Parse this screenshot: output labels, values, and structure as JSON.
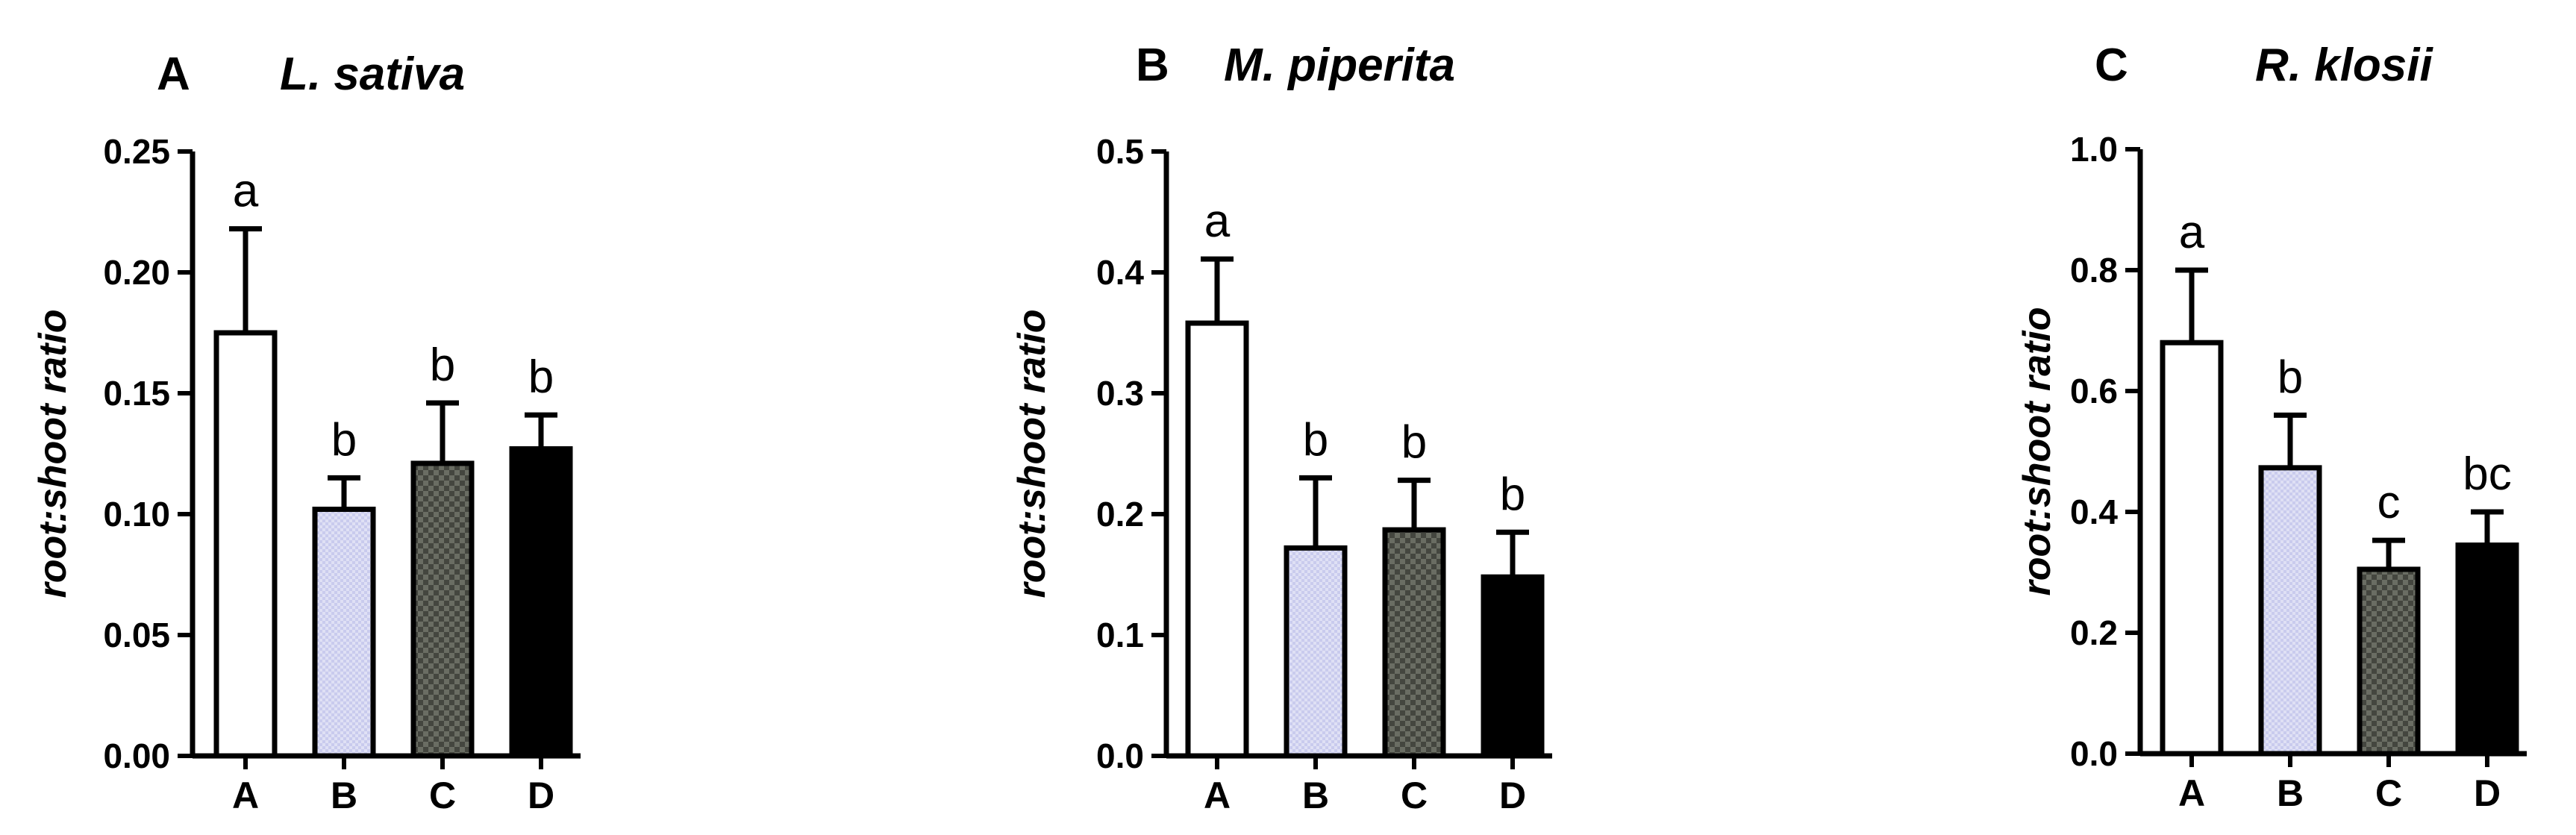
{
  "chart_data": [
    {
      "type": "bar",
      "panel": "A",
      "title": "L. sativa",
      "ylabel": "root:shoot ratio",
      "xlabel": "",
      "categories": [
        "A",
        "B",
        "C",
        "D"
      ],
      "values": [
        0.175,
        0.102,
        0.121,
        0.127
      ],
      "errors": [
        0.043,
        0.013,
        0.025,
        0.014
      ],
      "significance": [
        "a",
        "b",
        "b",
        "b"
      ],
      "ylim": [
        0,
        0.25
      ],
      "yticks": [
        "0.00",
        "0.05",
        "0.10",
        "0.15",
        "0.20",
        "0.25"
      ]
    },
    {
      "type": "bar",
      "panel": "B",
      "title": "M. piperita",
      "ylabel": "root:shoot ratio",
      "xlabel": "",
      "categories": [
        "A",
        "B",
        "C",
        "D"
      ],
      "values": [
        0.358,
        0.172,
        0.187,
        0.148
      ],
      "errors": [
        0.053,
        0.058,
        0.041,
        0.037
      ],
      "significance": [
        "a",
        "b",
        "b",
        "b"
      ],
      "ylim": [
        0,
        0.5
      ],
      "yticks": [
        "0.0",
        "0.1",
        "0.2",
        "0.3",
        "0.4",
        "0.5"
      ]
    },
    {
      "type": "bar",
      "panel": "C",
      "title": "R. klosii",
      "ylabel": "root:shoot ratio",
      "xlabel": "",
      "categories": [
        "A",
        "B",
        "C",
        "D"
      ],
      "values": [
        0.68,
        0.473,
        0.305,
        0.345
      ],
      "errors": [
        0.12,
        0.087,
        0.048,
        0.055
      ],
      "significance": [
        "a",
        "b",
        "c",
        "bc"
      ],
      "ylim": [
        0,
        1.0
      ],
      "yticks": [
        "0.0",
        "0.2",
        "0.4",
        "0.6",
        "0.8",
        "1.0"
      ]
    }
  ],
  "bar_styles": [
    {
      "category": "A",
      "fill": "#ffffff",
      "pattern": "none"
    },
    {
      "category": "B",
      "fill": "#d9daf2",
      "pattern": "light-dots"
    },
    {
      "category": "C",
      "fill": "#5e6158",
      "pattern": "dark-checker"
    },
    {
      "category": "D",
      "fill": "#000000",
      "pattern": "none"
    }
  ]
}
